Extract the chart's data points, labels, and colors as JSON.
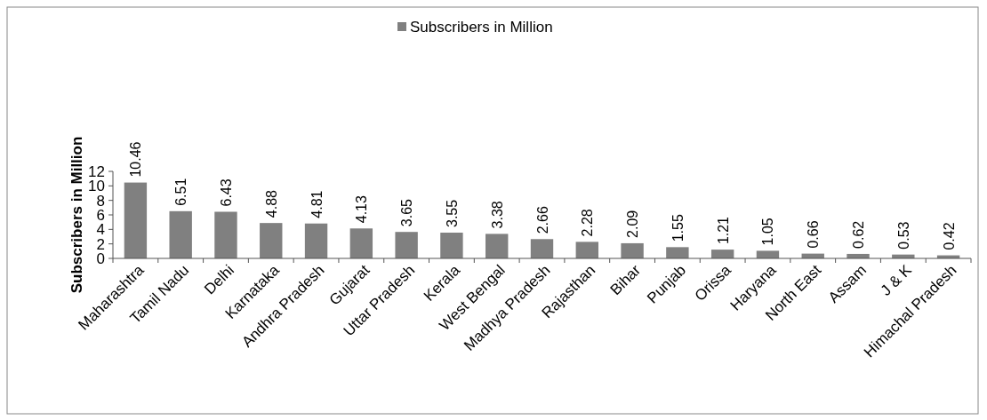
{
  "chart_data": {
    "type": "bar",
    "ylabel": "Subscribers in Million",
    "categories": [
      "Maharashtra",
      "Tamil Nadu",
      "Delhi",
      "Karnataka",
      "Andhra Pradesh",
      "Gujarat",
      "Uttar Pradesh",
      "Kerala",
      "West Bengal",
      "Madhya Pradesh",
      "Rajasthan",
      "Bihar",
      "Punjab",
      "Orissa",
      "Haryana",
      "North East",
      "Assam",
      "J & K",
      "Himachal Pradesh"
    ],
    "series": [
      {
        "name": "Subscribers in Million",
        "color": "#808080",
        "values": [
          10.46,
          6.51,
          6.43,
          4.88,
          4.81,
          4.13,
          3.65,
          3.55,
          3.38,
          2.66,
          2.28,
          2.09,
          1.55,
          1.21,
          1.05,
          0.66,
          0.62,
          0.53,
          0.42
        ]
      }
    ],
    "ylim": [
      0,
      12
    ],
    "yticks": [
      0,
      2,
      4,
      6,
      8,
      10,
      12
    ],
    "data_labels": true,
    "legend": "top",
    "grid": false
  }
}
